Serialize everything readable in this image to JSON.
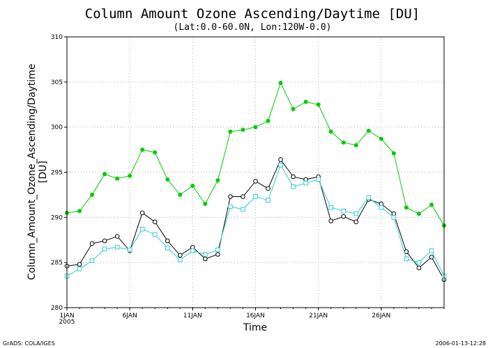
{
  "chart_data": {
    "type": "line",
    "title": "Column Amount Ozone Ascending/Daytime [DU]",
    "subtitle": "(Lat:0.0-60.0N, Lon:120W-0.0)",
    "xlabel": "Time",
    "ylabel": "Column_Amount_Ozone_Ascending/Daytime",
    "ylabel_unit": "[DU]",
    "x_days": [
      1,
      2,
      3,
      4,
      5,
      6,
      7,
      8,
      9,
      10,
      11,
      12,
      13,
      14,
      15,
      16,
      17,
      18,
      19,
      20,
      21,
      22,
      23,
      24,
      25,
      26,
      27,
      28,
      29,
      30,
      31
    ],
    "xlim": [
      1,
      31
    ],
    "ylim": [
      280,
      310
    ],
    "y_ticks": [
      280,
      285,
      290,
      295,
      300,
      305,
      310
    ],
    "x_tick_days": [
      1,
      6,
      11,
      16,
      21,
      26
    ],
    "x_tick_labels": [
      "1JAN",
      "6JAN",
      "11JAN",
      "16JAN",
      "21JAN",
      "26JAN"
    ],
    "x_year_label": "2005",
    "grid": true,
    "series": [
      {
        "color": "#00cc00",
        "marker": "dot",
        "values": [
          290.5,
          290.7,
          292.5,
          294.8,
          294.3,
          294.6,
          297.5,
          297.2,
          294.2,
          292.5,
          293.5,
          291.5,
          294.1,
          299.5,
          299.7,
          300.0,
          300.7,
          304.9,
          302.0,
          302.8,
          302.5,
          299.5,
          298.3,
          298.0,
          299.6,
          298.7,
          297.1,
          291.1,
          290.4,
          291.4,
          289.1
        ]
      },
      {
        "color": "#000000",
        "marker": "circle",
        "values": [
          284.6,
          284.8,
          287.1,
          287.4,
          287.9,
          286.3,
          290.5,
          289.5,
          287.4,
          285.8,
          286.7,
          285.4,
          285.9,
          292.3,
          292.3,
          294.0,
          293.2,
          296.4,
          294.5,
          294.2,
          294.5,
          289.6,
          290.1,
          289.5,
          292.0,
          291.5,
          290.4,
          286.2,
          284.4,
          285.6,
          283.1
        ]
      },
      {
        "color": "#33cccc",
        "marker": "square",
        "values": [
          283.5,
          284.3,
          285.2,
          286.5,
          286.7,
          286.4,
          288.7,
          288.1,
          286.6,
          285.3,
          286.3,
          285.9,
          286.4,
          291.2,
          290.9,
          292.3,
          291.9,
          295.8,
          293.4,
          293.8,
          294.2,
          291.1,
          290.7,
          290.4,
          292.2,
          291.1,
          290.0,
          285.4,
          285.0,
          286.3,
          283.5
        ]
      }
    ]
  },
  "footer": {
    "left": "GrADS: COLA/IGES",
    "right": "2006-01-13-12:28"
  }
}
